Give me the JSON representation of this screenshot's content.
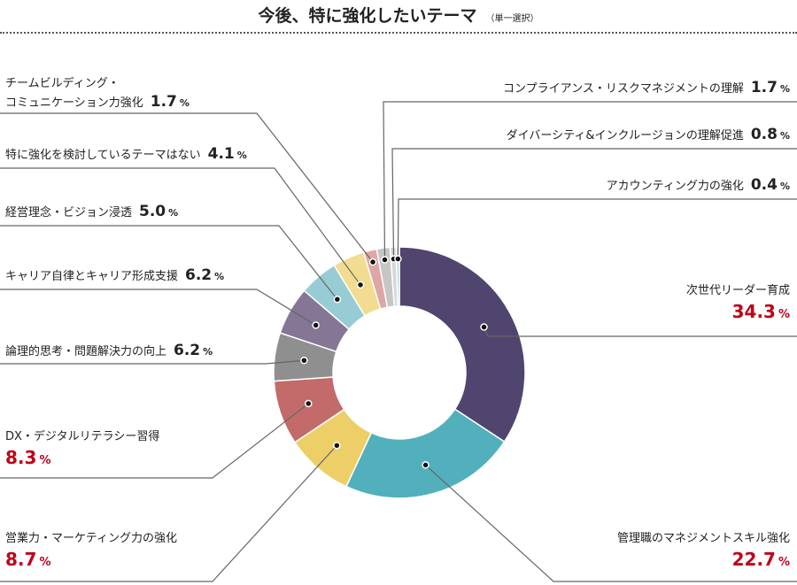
{
  "title": "今後、特に強化したいテーマ",
  "subtitle": "（単一選択）",
  "chart_data": {
    "type": "pie",
    "donut": true,
    "title": "今後、特に強化したいテーマ",
    "subtitle": "（単一選択）",
    "unit": "%",
    "highlight_color": "#c0001a",
    "slices": [
      {
        "label": "次世代リーダー育成",
        "value": 34.3,
        "color": "#4f456e"
      },
      {
        "label": "管理職のマネジメントスキル強化",
        "value": 22.7,
        "color": "#52b0bc"
      },
      {
        "label": "営業力・マーケティング力の強化",
        "value": 8.7,
        "color": "#edcf67"
      },
      {
        "label": "DX・デジタルリテラシー習得",
        "value": 8.3,
        "color": "#c26b6a"
      },
      {
        "label": "論理的思考・問題解決力の向上",
        "value": 6.2,
        "color": "#8f8f8f"
      },
      {
        "label": "キャリア自律とキャリア形成支援",
        "value": 6.2,
        "color": "#857696"
      },
      {
        "label": "経営理念・ビジョン浸透",
        "value": 5.0,
        "color": "#97ccd5"
      },
      {
        "label": "特に強化を検討しているテーマはない",
        "value": 4.1,
        "color": "#f2dc91"
      },
      {
        "label": "チームビルディング・コミュニケーション力強化",
        "value": 1.7,
        "color": "#dfa6a6"
      },
      {
        "label": "コンプライアンス・リスクマネジメントの理解",
        "value": 1.7,
        "color": "#c6c6c6"
      },
      {
        "label": "ダイバーシティ&インクルージョンの理解促進",
        "value": 0.8,
        "color": "#d8d8d8"
      },
      {
        "label": "アカウンティング力の強化",
        "value": 0.4,
        "color": "#a9dbe3"
      }
    ]
  }
}
